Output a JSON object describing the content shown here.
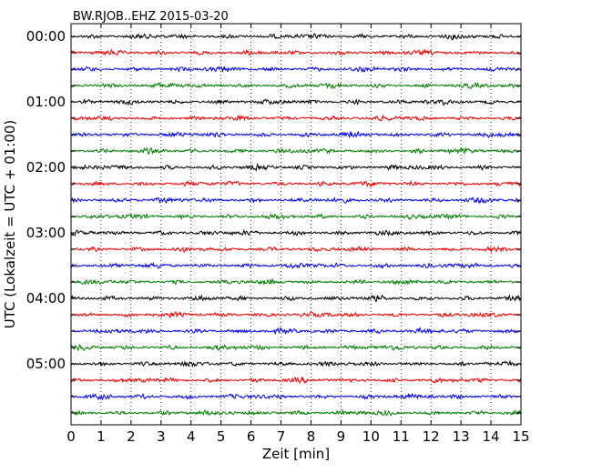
{
  "chart_data": {
    "type": "line",
    "title": "BW.RJOB..EHZ 2015-03-20",
    "xlabel": "Zeit  [min]",
    "ylabel": "UTC (Lokalzeit = UTC + 01:00)",
    "xlim": [
      0,
      15
    ],
    "x_ticks": [
      "0",
      "1",
      "2",
      "3",
      "4",
      "5",
      "6",
      "7",
      "8",
      "9",
      "10",
      "11",
      "12",
      "13",
      "14",
      "15"
    ],
    "y_ticks": [
      "00:00",
      "01:00",
      "02:00",
      "03:00",
      "04:00",
      "05:00"
    ],
    "grid": "vertical dotted",
    "trace_colors": [
      "#000000",
      "#ff0000",
      "#0000ff",
      "#008000"
    ],
    "traces": [
      {
        "start": "00:00",
        "color": "#000000"
      },
      {
        "start": "00:15",
        "color": "#ff0000"
      },
      {
        "start": "00:30",
        "color": "#0000ff"
      },
      {
        "start": "00:45",
        "color": "#008000"
      },
      {
        "start": "01:00",
        "color": "#000000"
      },
      {
        "start": "01:15",
        "color": "#ff0000"
      },
      {
        "start": "01:30",
        "color": "#0000ff"
      },
      {
        "start": "01:45",
        "color": "#008000"
      },
      {
        "start": "02:00",
        "color": "#000000"
      },
      {
        "start": "02:15",
        "color": "#ff0000"
      },
      {
        "start": "02:30",
        "color": "#0000ff"
      },
      {
        "start": "02:45",
        "color": "#008000"
      },
      {
        "start": "03:00",
        "color": "#000000"
      },
      {
        "start": "03:15",
        "color": "#ff0000"
      },
      {
        "start": "03:30",
        "color": "#0000ff"
      },
      {
        "start": "03:45",
        "color": "#008000"
      },
      {
        "start": "04:00",
        "color": "#000000"
      },
      {
        "start": "04:15",
        "color": "#ff0000"
      },
      {
        "start": "04:30",
        "color": "#0000ff"
      },
      {
        "start": "04:45",
        "color": "#008000"
      },
      {
        "start": "05:00",
        "color": "#000000"
      },
      {
        "start": "05:15",
        "color": "#ff0000"
      },
      {
        "start": "05:30",
        "color": "#0000ff"
      },
      {
        "start": "05:45",
        "color": "#008000"
      }
    ]
  }
}
